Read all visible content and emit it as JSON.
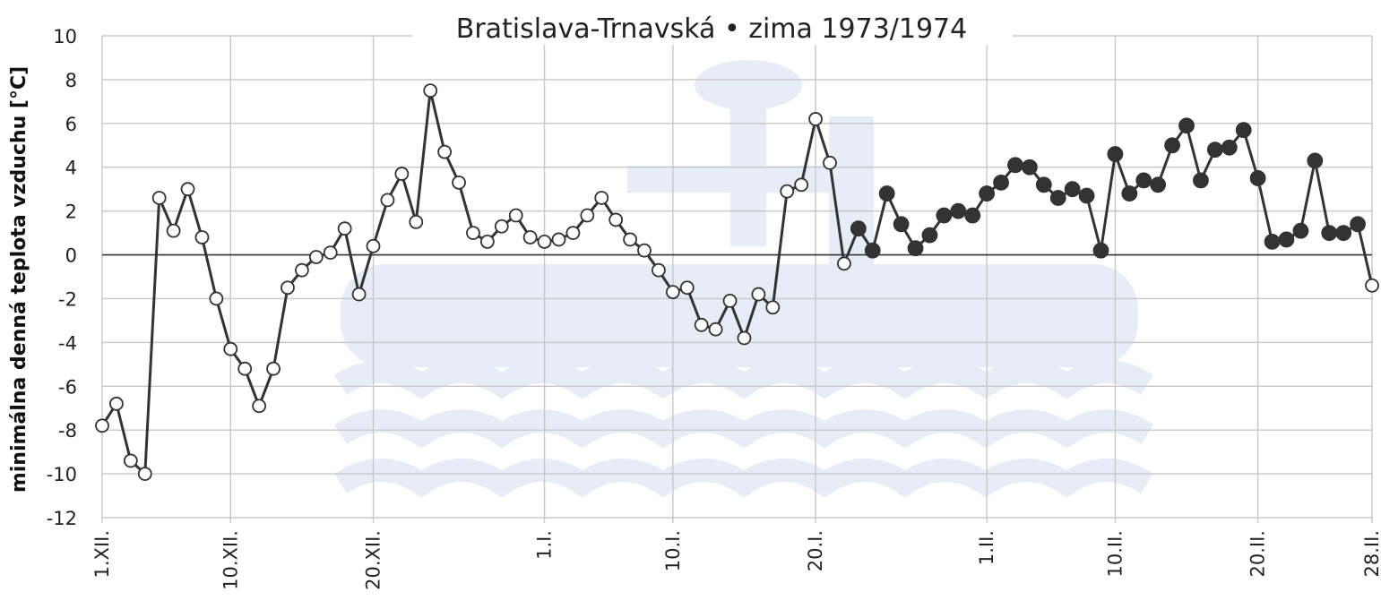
{
  "chart_data": {
    "type": "line",
    "title": "Bratislava-Trnavská • zima 1973/1974",
    "ylabel": "minimálna denná teplota vzduchu [°C]",
    "xlabel": "",
    "ylim": [
      -12,
      10
    ],
    "yticks": [
      "10",
      "8",
      "6",
      "4",
      "2",
      "0",
      "-2",
      "-4",
      "-6",
      "-8",
      "-10",
      "-12"
    ],
    "grid": true,
    "watermark": "SHMÚ",
    "colors": {
      "line": "#333333",
      "grid": "#c8c8c8",
      "watermark": "#e6edf7"
    },
    "xticks": [
      {
        "day": 1,
        "label": "1.XII."
      },
      {
        "day": 10,
        "label": "10.XII."
      },
      {
        "day": 20,
        "label": "20.XII."
      },
      {
        "day": 32,
        "label": "1.I."
      },
      {
        "day": 41,
        "label": "10.I."
      },
      {
        "day": 51,
        "label": "20.I."
      },
      {
        "day": 63,
        "label": "1.II."
      },
      {
        "day": 72,
        "label": "10.II."
      },
      {
        "day": 82,
        "label": "20.II."
      },
      {
        "day": 90,
        "label": "28.II."
      }
    ],
    "x_start": 1,
    "x_end": 90,
    "series": [
      {
        "values": [
          -7.8,
          -6.8,
          -9.4,
          -10.0,
          2.6,
          1.1,
          3.0,
          0.8,
          -2.0,
          -4.3,
          -5.2,
          -6.9,
          -5.2,
          -1.5,
          -0.7,
          -0.1,
          0.1,
          1.2,
          -1.8,
          0.4,
          2.5,
          3.7,
          1.5,
          7.5,
          4.7,
          3.3,
          1.0,
          0.6,
          1.3,
          1.8,
          0.8,
          0.6,
          0.7,
          1.0,
          1.8,
          2.6,
          1.6,
          0.7,
          0.2,
          -0.7,
          -1.7,
          -1.5,
          -3.2,
          -3.4,
          -2.1,
          -3.8,
          -1.8,
          -2.4,
          2.9,
          3.2,
          6.2,
          4.2,
          -0.4,
          1.2,
          0.2,
          2.8,
          1.4,
          0.3,
          0.9,
          1.8,
          2.0,
          1.8,
          2.8,
          3.3,
          4.1,
          4.0,
          3.2,
          2.6,
          3.0,
          2.7,
          0.2,
          4.6,
          2.8,
          3.4,
          3.2,
          5.0,
          5.9,
          3.4,
          4.8,
          4.9,
          5.7,
          3.5,
          0.6,
          0.7,
          1.1,
          4.3,
          1.0,
          1.0,
          1.4,
          -1.4
        ],
        "marker_open": [
          true,
          true,
          true,
          true,
          true,
          true,
          true,
          true,
          true,
          true,
          true,
          true,
          true,
          true,
          true,
          true,
          true,
          true,
          true,
          true,
          true,
          true,
          true,
          true,
          true,
          true,
          true,
          true,
          true,
          true,
          true,
          true,
          true,
          true,
          true,
          true,
          true,
          true,
          true,
          true,
          true,
          true,
          true,
          true,
          true,
          true,
          true,
          true,
          true,
          true,
          true,
          true,
          true,
          false,
          false,
          false,
          false,
          false,
          false,
          false,
          false,
          false,
          false,
          false,
          false,
          false,
          false,
          false,
          false,
          false,
          false,
          false,
          false,
          false,
          false,
          false,
          false,
          false,
          false,
          false,
          false,
          false,
          false,
          false,
          false,
          false,
          false,
          false,
          false,
          true
        ]
      }
    ]
  }
}
